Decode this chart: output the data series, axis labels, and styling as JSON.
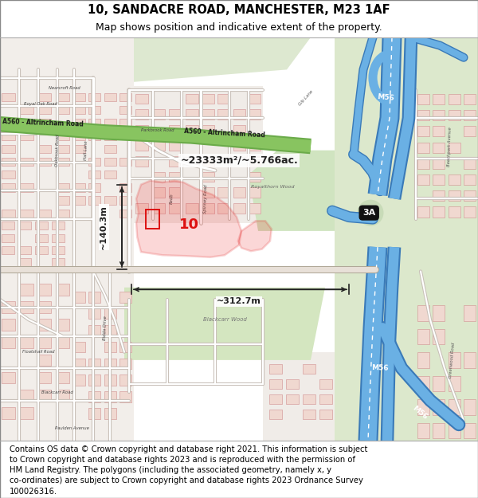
{
  "title_line1": "10, SANDACRE ROAD, MANCHESTER, M23 1AF",
  "title_line2": "Map shows position and indicative extent of the property.",
  "footer_text": "Contains OS data © Crown copyright and database right 2021. This information is subject to Crown copyright and database rights 2023 and is reproduced with the permission of HM Land Registry. The polygons (including the associated geometry, namely x, y co-ordinates) are subject to Crown copyright and database rights 2023 Ordnance Survey 100026316.",
  "area_label": "~23333m²/~5.766ac.",
  "number_label": "10",
  "width_label": "~312.7m",
  "height_label": "~140.3m",
  "title_fontsize": 10.5,
  "subtitle_fontsize": 9,
  "footer_fontsize": 7.2,
  "map_bg": "#f5f3ef",
  "green_road": "#8dc56a",
  "green_area": "#d8e8c8",
  "blue_motorway": "#6ab0e0",
  "property_red": "#dd1111",
  "building_pink": "#e8c8c8",
  "building_outline": "#cc9999",
  "road_white": "#ffffff",
  "road_grey": "#d8d0c8"
}
